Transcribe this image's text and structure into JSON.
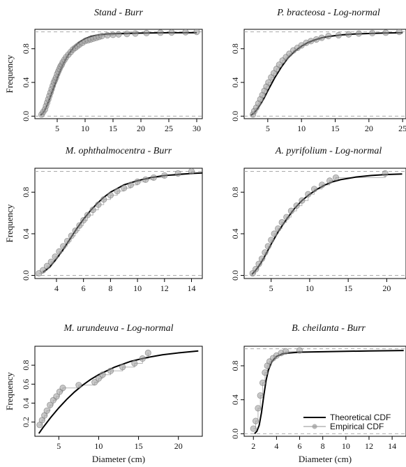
{
  "colors": {
    "theoretical": "#000000",
    "empirical_point": "#9a9a9a",
    "empirical_line": "#b5b5b5",
    "frame": "#000000",
    "reference_line": "#aaaaaa"
  },
  "legend": {
    "theoretical_label": "Theoretical CDF",
    "empirical_label": "Empirical CDF"
  },
  "chart_data": [
    {
      "type": "line",
      "title": "Stand - Burr",
      "ylabel": "Frequency",
      "xlabel": "",
      "xlim": [
        1,
        31
      ],
      "ylim": [
        -0.03,
        1.03
      ],
      "xticks": [
        5,
        10,
        15,
        20,
        25,
        30
      ],
      "yticks": [
        0.0,
        0.4,
        0.8
      ],
      "reference_lines": [
        0,
        1
      ],
      "legend": false,
      "series": [
        {
          "kind": "theoretical",
          "x": [
            2,
            2.5,
            3,
            3.5,
            4,
            4.5,
            5,
            5.5,
            6,
            7,
            8,
            9,
            10,
            11,
            12,
            14,
            16,
            20,
            25,
            30
          ],
          "y": [
            0.01,
            0.04,
            0.1,
            0.18,
            0.27,
            0.36,
            0.45,
            0.53,
            0.61,
            0.73,
            0.82,
            0.88,
            0.92,
            0.945,
            0.96,
            0.975,
            0.98,
            0.985,
            0.99,
            0.99
          ]
        },
        {
          "kind": "empirical",
          "x": [
            2.2,
            2.5,
            2.8,
            3.0,
            3.2,
            3.4,
            3.6,
            3.8,
            4.0,
            4.2,
            4.4,
            4.6,
            4.8,
            5.0,
            5.2,
            5.4,
            5.6,
            5.8,
            6.0,
            6.3,
            6.6,
            7.0,
            7.4,
            7.8,
            8.2,
            8.6,
            9.0,
            9.5,
            10.0,
            10.5,
            11.0,
            11.5,
            12.0,
            12.5,
            13.0,
            14.0,
            15.0,
            16.0,
            17.5,
            19.0,
            21.0,
            23.5,
            25.5,
            28.0,
            30.0
          ],
          "y": [
            0.02,
            0.05,
            0.08,
            0.12,
            0.16,
            0.2,
            0.24,
            0.28,
            0.32,
            0.36,
            0.4,
            0.43,
            0.46,
            0.5,
            0.53,
            0.56,
            0.59,
            0.61,
            0.64,
            0.67,
            0.7,
            0.73,
            0.76,
            0.79,
            0.81,
            0.83,
            0.85,
            0.87,
            0.89,
            0.9,
            0.91,
            0.92,
            0.93,
            0.94,
            0.95,
            0.96,
            0.965,
            0.97,
            0.975,
            0.98,
            0.985,
            0.99,
            0.993,
            0.996,
            1.0
          ]
        }
      ]
    },
    {
      "type": "line",
      "title": "P. bracteosa - Log-normal",
      "ylabel": "",
      "xlabel": "",
      "xlim": [
        1.5,
        25.5
      ],
      "ylim": [
        -0.03,
        1.03
      ],
      "xticks": [
        5,
        10,
        15,
        20,
        25
      ],
      "yticks": [
        0.0,
        0.4,
        0.8
      ],
      "reference_lines": [
        0,
        1
      ],
      "legend": false,
      "series": [
        {
          "kind": "theoretical",
          "x": [
            2.5,
            3,
            3.5,
            4,
            4.5,
            5,
            6,
            7,
            8,
            9,
            10,
            11,
            12,
            13,
            14,
            16,
            18,
            20,
            22,
            25
          ],
          "y": [
            0.01,
            0.04,
            0.09,
            0.15,
            0.22,
            0.3,
            0.45,
            0.58,
            0.69,
            0.77,
            0.83,
            0.875,
            0.905,
            0.93,
            0.945,
            0.965,
            0.975,
            0.98,
            0.985,
            0.99
          ]
        },
        {
          "kind": "empirical",
          "x": [
            2.8,
            3.0,
            3.3,
            3.6,
            3.9,
            4.2,
            4.5,
            4.8,
            5.1,
            5.5,
            5.9,
            6.3,
            6.7,
            7.2,
            7.7,
            8.2,
            8.8,
            9.4,
            10.0,
            10.7,
            11.4,
            12.2,
            13.0,
            14.0,
            15.5,
            17.0,
            18.5,
            20.5,
            22.5,
            24.5
          ],
          "y": [
            0.02,
            0.06,
            0.1,
            0.15,
            0.2,
            0.25,
            0.3,
            0.35,
            0.4,
            0.46,
            0.51,
            0.56,
            0.61,
            0.66,
            0.7,
            0.74,
            0.78,
            0.81,
            0.84,
            0.87,
            0.89,
            0.91,
            0.93,
            0.95,
            0.96,
            0.97,
            0.98,
            0.985,
            0.99,
            1.0
          ]
        }
      ]
    },
    {
      "type": "line",
      "title": "M. ophthalmocentra - Burr",
      "ylabel": "Frequency",
      "xlabel": "",
      "xlim": [
        2.4,
        14.8
      ],
      "ylim": [
        -0.03,
        1.03
      ],
      "xticks": [
        4,
        6,
        8,
        10,
        12,
        14
      ],
      "yticks": [
        0.0,
        0.4,
        0.8
      ],
      "reference_lines": [
        0,
        1
      ],
      "legend": false,
      "series": [
        {
          "kind": "theoretical",
          "x": [
            3,
            3.5,
            4,
            4.5,
            5,
            5.5,
            6,
            6.5,
            7,
            7.5,
            8,
            9,
            10,
            11,
            12,
            13,
            14,
            14.8
          ],
          "y": [
            0.03,
            0.08,
            0.16,
            0.25,
            0.35,
            0.45,
            0.54,
            0.62,
            0.69,
            0.75,
            0.8,
            0.87,
            0.91,
            0.94,
            0.96,
            0.97,
            0.98,
            0.985
          ]
        },
        {
          "kind": "empirical",
          "x": [
            2.7,
            3.0,
            3.3,
            3.6,
            3.9,
            4.2,
            4.5,
            4.8,
            5.1,
            5.4,
            5.7,
            6.0,
            6.3,
            6.7,
            7.1,
            7.5,
            8.0,
            8.5,
            9.0,
            9.5,
            10.0,
            10.6,
            11.2,
            12.0,
            13.0,
            14.0
          ],
          "y": [
            0.02,
            0.05,
            0.09,
            0.13,
            0.18,
            0.23,
            0.28,
            0.33,
            0.38,
            0.43,
            0.48,
            0.53,
            0.58,
            0.63,
            0.68,
            0.73,
            0.77,
            0.81,
            0.84,
            0.87,
            0.9,
            0.92,
            0.94,
            0.96,
            0.98,
            1.0
          ]
        }
      ]
    },
    {
      "type": "line",
      "title": "A. pyrifolium - Log-normal",
      "ylabel": "",
      "xlabel": "",
      "xlim": [
        1.5,
        22.5
      ],
      "ylim": [
        -0.03,
        1.03
      ],
      "xticks": [
        5,
        10,
        15,
        20
      ],
      "yticks": [
        0.0,
        0.4,
        0.8
      ],
      "reference_lines": [
        0,
        1
      ],
      "legend": false,
      "series": [
        {
          "kind": "theoretical",
          "x": [
            2.5,
            3,
            3.5,
            4,
            5,
            6,
            7,
            8,
            9,
            10,
            11,
            12,
            13,
            14,
            16,
            18,
            20,
            22
          ],
          "y": [
            0.01,
            0.05,
            0.1,
            0.16,
            0.3,
            0.43,
            0.54,
            0.64,
            0.72,
            0.78,
            0.83,
            0.87,
            0.9,
            0.92,
            0.945,
            0.96,
            0.97,
            0.975
          ]
        },
        {
          "kind": "empirical",
          "x": [
            2.6,
            3.0,
            3.4,
            3.8,
            4.2,
            4.6,
            5.0,
            5.4,
            5.9,
            6.4,
            7.0,
            7.6,
            8.3,
            9.0,
            9.8,
            10.6,
            11.6,
            12.6,
            13.4,
            19.8
          ],
          "y": [
            0.02,
            0.06,
            0.11,
            0.16,
            0.22,
            0.28,
            0.34,
            0.4,
            0.45,
            0.51,
            0.56,
            0.62,
            0.67,
            0.72,
            0.78,
            0.83,
            0.87,
            0.91,
            0.94,
            0.98
          ]
        }
      ]
    },
    {
      "type": "line",
      "title": "M. urundeuva - Log-normal",
      "ylabel": "Frequency",
      "xlabel": "Diameter (cm)",
      "xlim": [
        2,
        23
      ],
      "ylim": [
        0.05,
        1.0
      ],
      "xticks": [
        5,
        10,
        15,
        20
      ],
      "yticks": [
        0.2,
        0.4,
        0.6,
        0.8
      ],
      "reference_lines": [],
      "legend": false,
      "series": [
        {
          "kind": "theoretical",
          "x": [
            2.5,
            3,
            4,
            5,
            6,
            7,
            8,
            9,
            10,
            11,
            12,
            13,
            14,
            15,
            16,
            18,
            20,
            22.5
          ],
          "y": [
            0.08,
            0.14,
            0.25,
            0.35,
            0.44,
            0.52,
            0.59,
            0.65,
            0.7,
            0.74,
            0.78,
            0.81,
            0.84,
            0.86,
            0.88,
            0.91,
            0.93,
            0.95
          ]
        },
        {
          "kind": "empirical",
          "x": [
            2.6,
            2.9,
            3.2,
            3.5,
            3.9,
            4.3,
            4.7,
            5.1,
            5.5,
            7.5,
            9.5,
            10.0,
            10.5,
            11.5,
            13.0,
            14.5,
            15.5,
            16.2
          ],
          "y": [
            0.17,
            0.22,
            0.27,
            0.32,
            0.38,
            0.43,
            0.47,
            0.52,
            0.56,
            0.59,
            0.62,
            0.66,
            0.7,
            0.74,
            0.78,
            0.82,
            0.87,
            0.93
          ]
        }
      ]
    },
    {
      "type": "line",
      "title": "B. cheilanta - Burr",
      "ylabel": "",
      "xlabel": "Diameter (cm)",
      "xlim": [
        1.2,
        15.2
      ],
      "ylim": [
        -0.03,
        1.03
      ],
      "xticks": [
        2,
        4,
        6,
        8,
        10,
        12,
        14
      ],
      "yticks": [
        0.0,
        0.4,
        0.8
      ],
      "reference_lines": [
        0,
        1
      ],
      "legend": true,
      "legend_position": "bottom-right",
      "series": [
        {
          "kind": "theoretical",
          "x": [
            2.1,
            2.3,
            2.5,
            2.7,
            2.9,
            3.1,
            3.3,
            3.6,
            4.0,
            4.5,
            5.0,
            6.0,
            8.0,
            10.0,
            12.0,
            15.0
          ],
          "y": [
            0.0,
            0.03,
            0.1,
            0.25,
            0.45,
            0.63,
            0.75,
            0.85,
            0.91,
            0.94,
            0.95,
            0.96,
            0.965,
            0.97,
            0.975,
            0.98
          ]
        },
        {
          "kind": "empirical",
          "x": [
            2.0,
            2.2,
            2.4,
            2.6,
            2.8,
            3.0,
            3.2,
            3.4,
            3.7,
            4.0,
            4.4,
            4.8,
            6.0
          ],
          "y": [
            0.06,
            0.15,
            0.3,
            0.45,
            0.6,
            0.72,
            0.8,
            0.85,
            0.89,
            0.92,
            0.95,
            0.97,
            0.98
          ]
        }
      ]
    }
  ]
}
